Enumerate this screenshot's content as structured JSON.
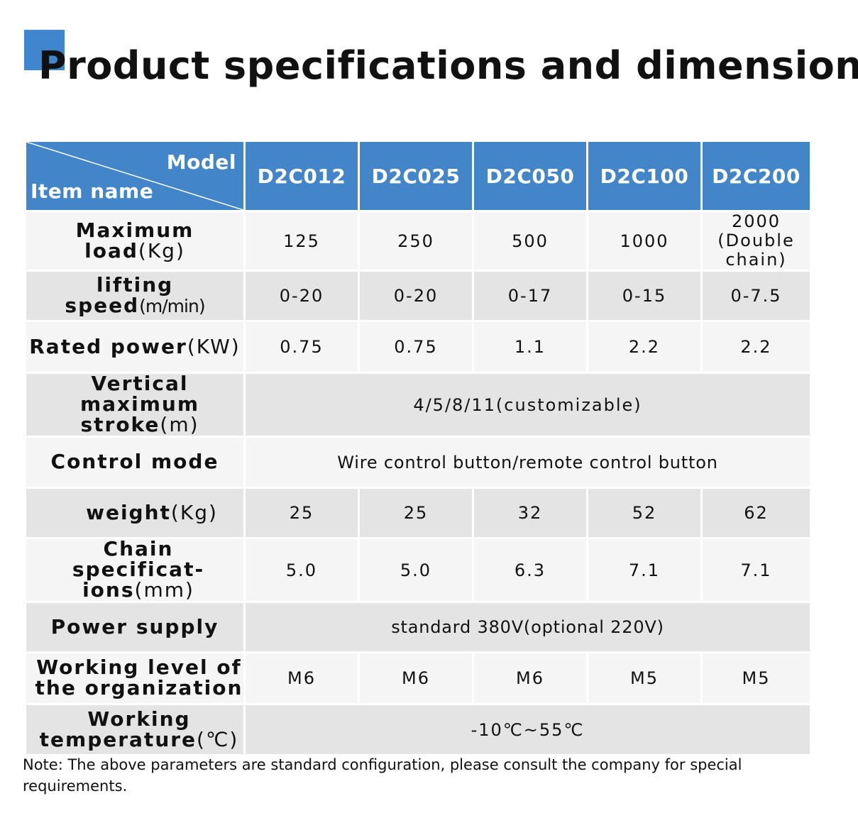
{
  "title": "Product specifications and dimensions",
  "header": {
    "model_label": "Model",
    "item_label": "Item name",
    "models": [
      "D2C012",
      "D2C025",
      "D2C050",
      "D2C100",
      "D2C200"
    ]
  },
  "rows": {
    "max_load": {
      "label": "Maximum load",
      "unit": "(Kg)",
      "values": [
        "125",
        "250",
        "500",
        "1000"
      ],
      "last_line1": "2000",
      "last_line2": "(Double chain)"
    },
    "lifting_speed": {
      "label": "lifting speed",
      "unit": "(m/min)",
      "values": [
        "0-20",
        "0-20",
        "0-17",
        "0-15",
        "0-7.5"
      ]
    },
    "rated_power": {
      "label": "Rated power",
      "unit": "(KW)",
      "values": [
        "0.75",
        "0.75",
        "1.1",
        "2.2",
        "2.2"
      ]
    },
    "vertical_stroke": {
      "label_line1": "Vertical maximum",
      "label_line2": "stroke",
      "unit": "(m)",
      "value": "4/5/8/11(customizable)"
    },
    "control_mode": {
      "label": "Control mode",
      "value": "Wire control button/remote control button"
    },
    "weight": {
      "label": "weight",
      "unit": "(Kg)",
      "values": [
        "25",
        "25",
        "32",
        "52",
        "62"
      ]
    },
    "chain_spec": {
      "label_line1": "Chain specificat-",
      "label_line2": "ions",
      "unit": "(mm)",
      "values": [
        "5.0",
        "5.0",
        "6.3",
        "7.1",
        "7.1"
      ]
    },
    "power_supply": {
      "label": "Power supply",
      "value": "standard 380V(optional 220V)"
    },
    "working_level": {
      "label_line1": "Working level of",
      "label_line2": "the organization",
      "values": [
        "M6",
        "M6",
        "M6",
        "M5",
        "M5"
      ]
    },
    "working_temp": {
      "label_line1": "Working",
      "label_line2": "temperature",
      "unit": "(℃)",
      "value": "-10℃~55℃"
    }
  },
  "note": "Note: The above parameters are standard configuration, please consult the company for special requirements.",
  "colors": {
    "accent": "#3f86cf",
    "header_bg": "#4285c8",
    "row_light": "#f5f5f5",
    "row_dark": "#e4e4e4"
  }
}
